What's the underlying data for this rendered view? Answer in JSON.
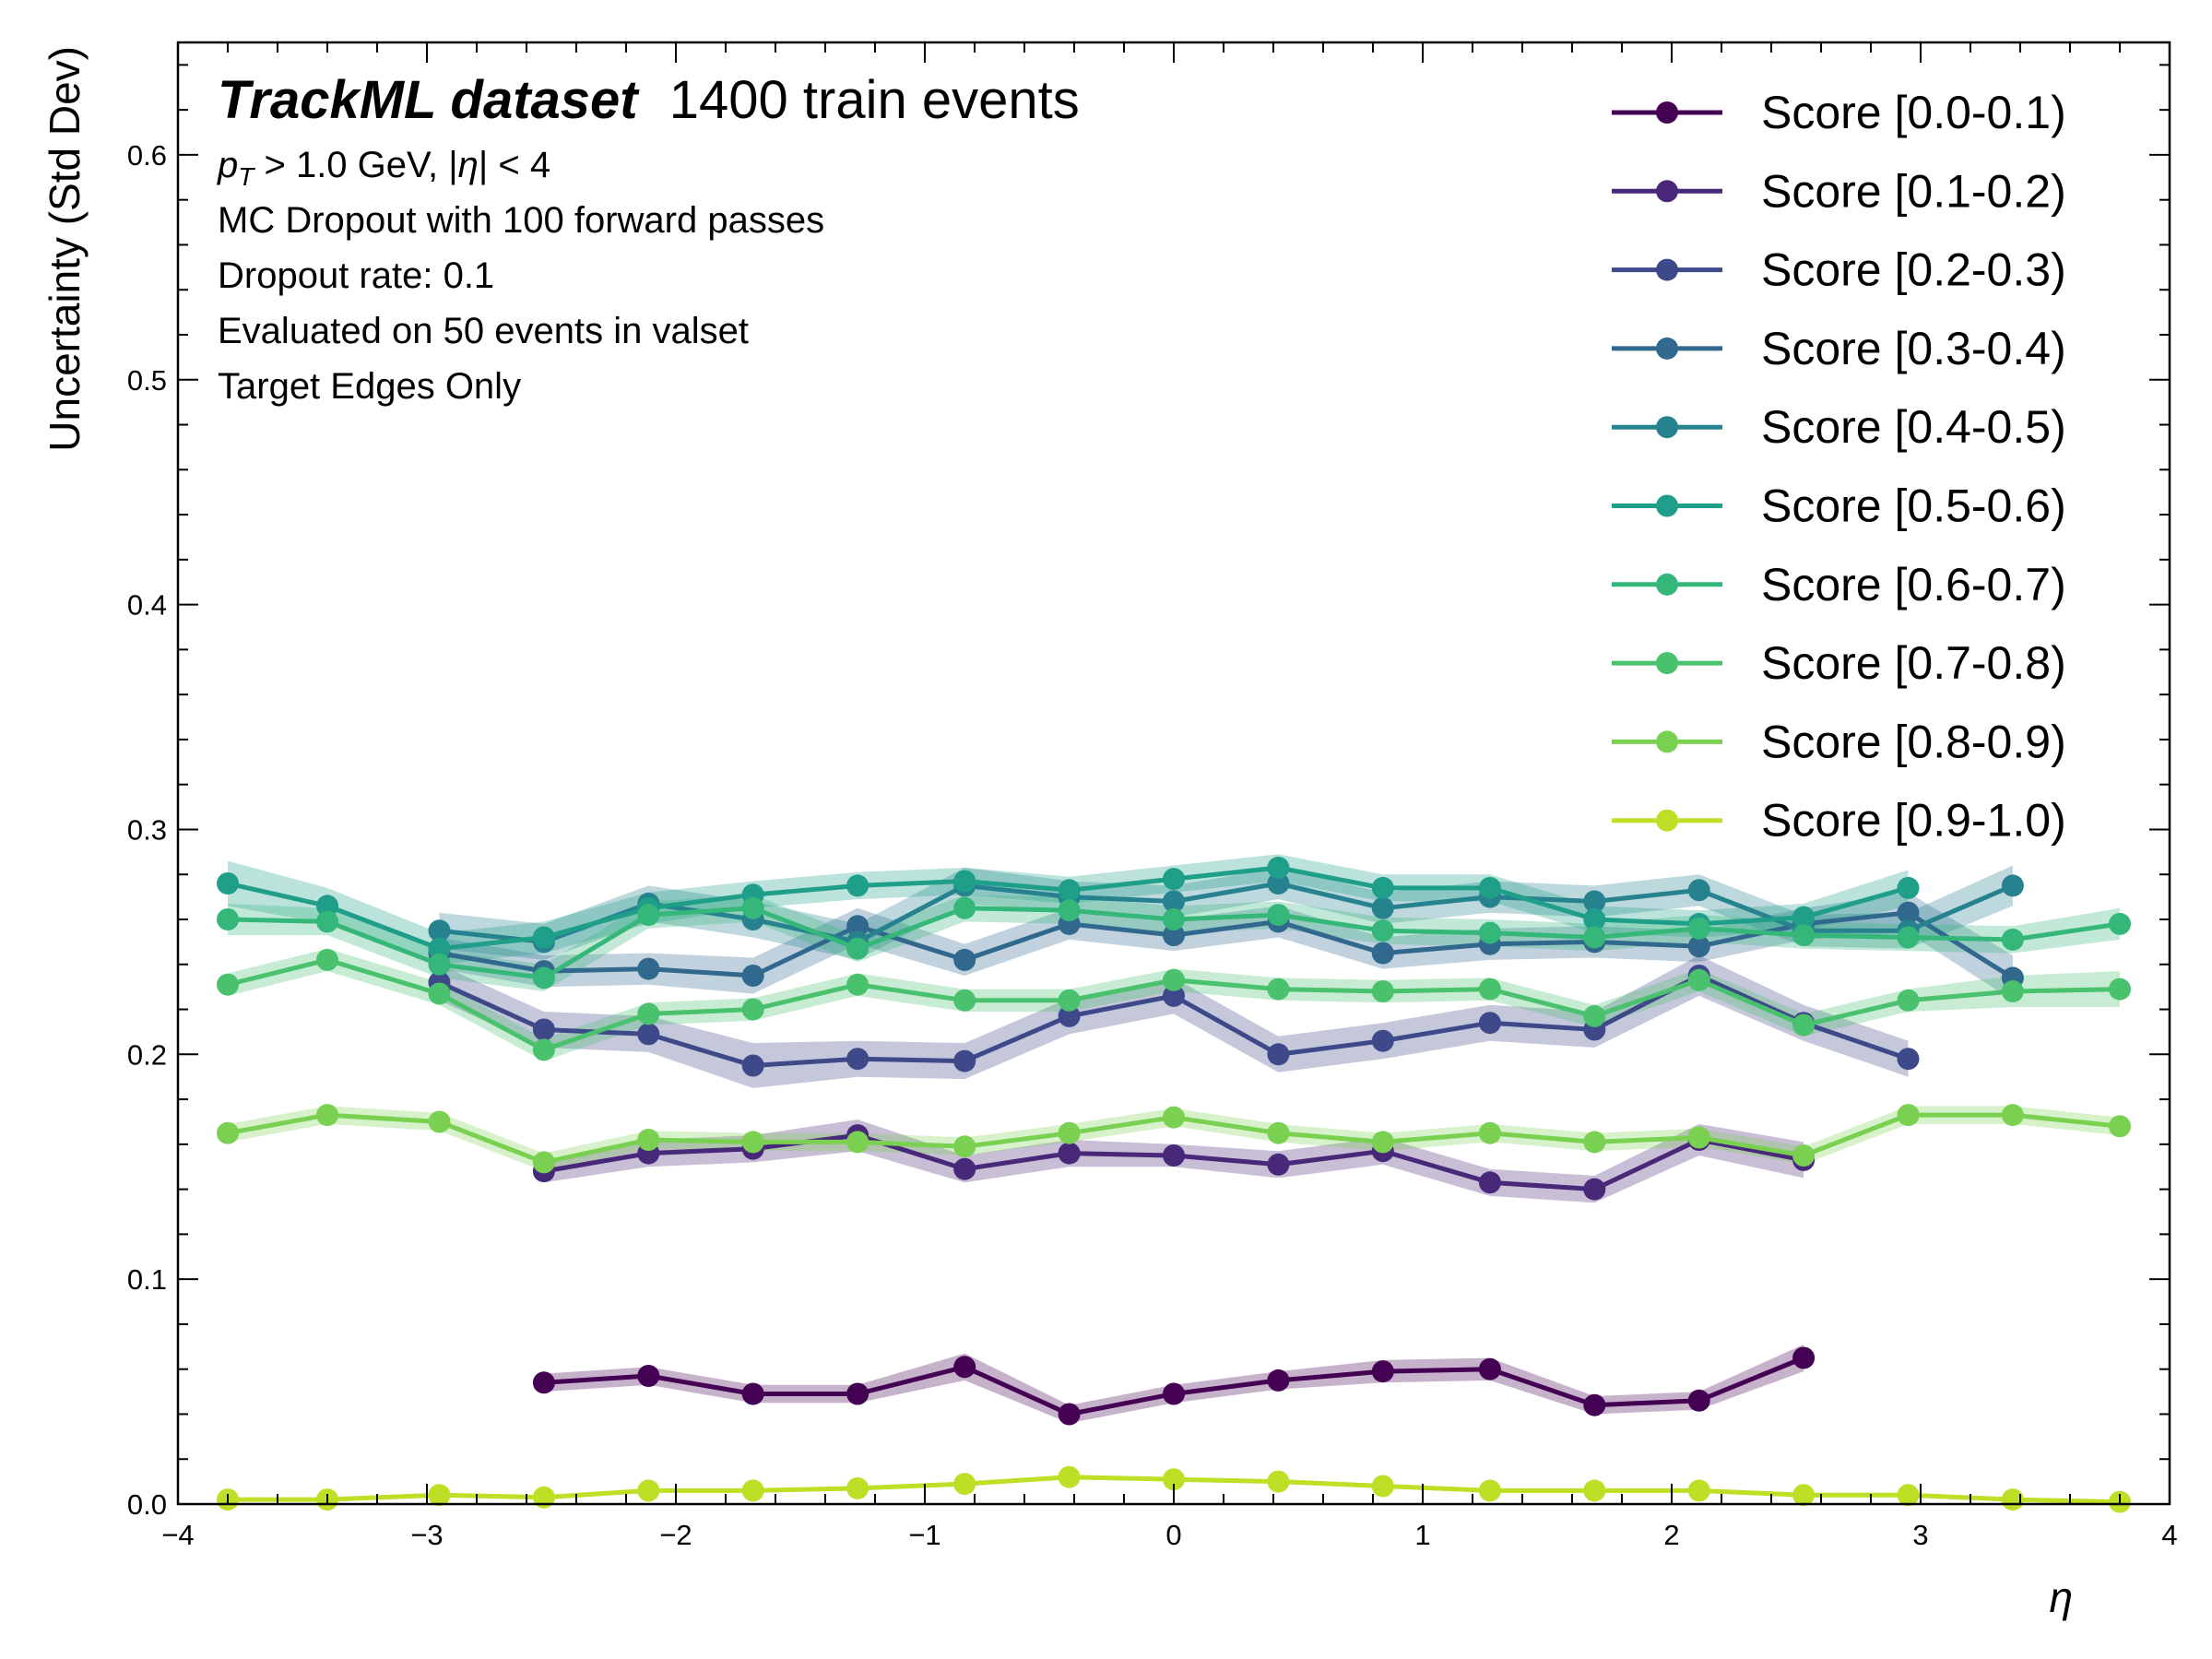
{
  "chart_data": {
    "type": "line",
    "title_bold": "TrackML dataset",
    "title_rest": "1400 train events",
    "info_lines": [
      "p_T > 1.0 GeV, |η| < 4",
      "MC Dropout with 100 forward passes",
      "Dropout rate: 0.1",
      "Evaluated on 50 events in valset",
      "Target Edges Only"
    ],
    "info_math": {
      "pT": "p",
      "pT_sub": "T",
      "pT_rest": " > 1.0 GeV, |",
      "eta": "η",
      "eta_rest": "| < 4"
    },
    "xlabel": "η",
    "ylabel": "Uncertainty (Std Dev)",
    "xlim": [
      -4,
      4
    ],
    "ylim": [
      0,
      0.65
    ],
    "x_major_ticks": [
      -4,
      -3,
      -2,
      -1,
      0,
      1,
      2,
      3,
      4
    ],
    "x_tick_labels": [
      "−4",
      "−3",
      "−2",
      "−1",
      "0",
      "1",
      "2",
      "3",
      "4"
    ],
    "y_major_ticks": [
      0,
      0.1,
      0.2,
      0.3,
      0.4,
      0.5,
      0.6
    ],
    "y_tick_labels": [
      "0.0",
      "0.1",
      "0.2",
      "0.3",
      "0.4",
      "0.5",
      "0.6"
    ],
    "grid": false,
    "legend_position": "top-right",
    "x": [
      -3.8,
      -3.4,
      -2.95,
      -2.53,
      -2.11,
      -1.69,
      -1.27,
      -0.84,
      -0.42,
      0,
      0.42,
      0.84,
      1.27,
      1.69,
      2.11,
      2.53,
      2.95,
      3.37,
      3.8
    ],
    "series": [
      {
        "name": "Score [0.0-0.1)",
        "color": "#440154",
        "values": [
          null,
          null,
          null,
          0.054,
          0.057,
          0.049,
          0.049,
          0.061,
          0.04,
          0.049,
          0.055,
          0.059,
          0.06,
          0.044,
          0.046,
          0.065,
          null,
          null,
          null
        ],
        "band": [
          null,
          null,
          null,
          0.004,
          0.004,
          0.004,
          0.004,
          0.006,
          0.004,
          0.004,
          0.004,
          0.005,
          0.005,
          0.004,
          0.004,
          0.006,
          null,
          null,
          null
        ]
      },
      {
        "name": "Score [0.1-0.2)",
        "color": "#482878",
        "values": [
          null,
          null,
          null,
          0.148,
          0.156,
          0.158,
          0.164,
          0.149,
          0.156,
          0.155,
          0.151,
          0.157,
          0.143,
          0.14,
          0.162,
          0.153,
          null,
          null,
          null
        ],
        "band": [
          null,
          null,
          null,
          0.005,
          0.006,
          0.006,
          0.007,
          0.006,
          0.006,
          0.005,
          0.006,
          0.006,
          0.006,
          0.006,
          0.007,
          0.008,
          null,
          null,
          null
        ]
      },
      {
        "name": "Score [0.2-0.3)",
        "color": "#3e4989",
        "values": [
          null,
          null,
          0.232,
          0.211,
          0.209,
          0.195,
          0.198,
          0.197,
          0.217,
          0.226,
          0.2,
          0.206,
          0.214,
          0.211,
          0.235,
          0.214,
          0.198,
          null,
          null
        ],
        "band": [
          null,
          null,
          0.008,
          0.008,
          0.008,
          0.01,
          0.008,
          0.008,
          0.008,
          0.008,
          0.008,
          0.008,
          0.008,
          0.008,
          0.009,
          0.008,
          0.008,
          null,
          null
        ]
      },
      {
        "name": "Score [0.3-0.4)",
        "color": "#31688e",
        "values": [
          null,
          null,
          0.245,
          0.237,
          0.238,
          0.235,
          0.257,
          0.242,
          0.258,
          0.253,
          0.259,
          0.245,
          0.249,
          0.25,
          0.248,
          0.258,
          0.263,
          0.234,
          null
        ],
        "band": [
          null,
          null,
          0.007,
          0.007,
          0.007,
          0.008,
          0.008,
          0.007,
          0.007,
          0.007,
          0.007,
          0.007,
          0.007,
          0.007,
          0.007,
          0.007,
          0.009,
          0.01,
          null
        ]
      },
      {
        "name": "Score [0.4-0.5)",
        "color": "#26828e",
        "values": [
          null,
          null,
          0.255,
          0.25,
          0.267,
          0.26,
          0.25,
          0.275,
          0.27,
          0.268,
          0.276,
          0.265,
          0.27,
          0.268,
          0.273,
          0.255,
          0.255,
          0.275,
          null
        ],
        "band": [
          null,
          null,
          0.008,
          0.008,
          0.008,
          0.008,
          0.008,
          0.008,
          0.007,
          0.007,
          0.007,
          0.007,
          0.007,
          0.007,
          0.007,
          0.007,
          0.008,
          0.009,
          null
        ]
      },
      {
        "name": "Score [0.5-0.6)",
        "color": "#1f9e89",
        "values": [
          0.276,
          0.266,
          0.247,
          0.252,
          0.265,
          0.271,
          0.275,
          0.277,
          0.273,
          0.278,
          0.283,
          0.274,
          0.274,
          0.26,
          0.258,
          0.261,
          0.274,
          null,
          null
        ],
        "band": [
          0.01,
          0.008,
          0.007,
          0.007,
          0.007,
          0.006,
          0.006,
          0.006,
          0.006,
          0.006,
          0.006,
          0.006,
          0.006,
          0.006,
          0.006,
          0.006,
          0.008,
          null,
          null
        ]
      },
      {
        "name": "Score [0.6-0.7)",
        "color": "#35b779",
        "values": [
          0.26,
          0.259,
          0.24,
          0.234,
          0.262,
          0.265,
          0.247,
          0.265,
          0.264,
          0.26,
          0.262,
          0.255,
          0.254,
          0.252,
          0.256,
          0.253,
          0.252,
          0.251,
          0.258
        ],
        "band": [
          0.007,
          0.006,
          0.006,
          0.006,
          0.006,
          0.006,
          0.006,
          0.006,
          0.006,
          0.006,
          0.006,
          0.006,
          0.006,
          0.006,
          0.006,
          0.006,
          0.006,
          0.006,
          0.007
        ]
      },
      {
        "name": "Score [0.7-0.8)",
        "color": "#4ac16d",
        "values": [
          0.231,
          0.242,
          0.227,
          0.202,
          0.218,
          0.22,
          0.231,
          0.224,
          0.224,
          0.233,
          0.229,
          0.228,
          0.229,
          0.217,
          0.233,
          0.213,
          0.224,
          0.228,
          0.229
        ],
        "band": [
          0.005,
          0.005,
          0.005,
          0.005,
          0.005,
          0.005,
          0.005,
          0.005,
          0.005,
          0.005,
          0.005,
          0.005,
          0.005,
          0.005,
          0.005,
          0.005,
          0.005,
          0.007,
          0.008
        ]
      },
      {
        "name": "Score [0.8-0.9)",
        "color": "#7ad151",
        "values": [
          0.165,
          0.173,
          0.17,
          0.152,
          0.162,
          0.161,
          0.161,
          0.159,
          0.165,
          0.172,
          0.165,
          0.161,
          0.165,
          0.161,
          0.163,
          0.155,
          0.173,
          0.173,
          0.168
        ],
        "band": [
          0.004,
          0.004,
          0.004,
          0.004,
          0.004,
          0.004,
          0.004,
          0.004,
          0.004,
          0.004,
          0.004,
          0.004,
          0.004,
          0.004,
          0.004,
          0.004,
          0.004,
          0.004,
          0.004
        ]
      },
      {
        "name": "Score [0.9-1.0)",
        "color": "#bddf26",
        "values": [
          0.002,
          0.002,
          0.004,
          0.003,
          0.006,
          0.006,
          0.007,
          0.009,
          0.012,
          0.011,
          0.01,
          0.008,
          0.006,
          0.006,
          0.006,
          0.004,
          0.004,
          0.002,
          0.001
        ],
        "band": [
          0.001,
          0.001,
          0.001,
          0.001,
          0.001,
          0.001,
          0.001,
          0.001,
          0.001,
          0.001,
          0.001,
          0.001,
          0.001,
          0.001,
          0.001,
          0.001,
          0.001,
          0.001,
          0.001
        ]
      }
    ]
  }
}
